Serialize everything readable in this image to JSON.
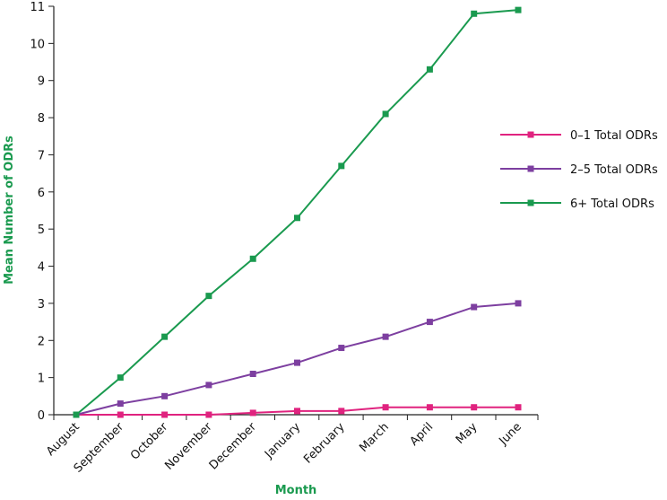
{
  "chart_data": {
    "type": "line",
    "xlabel": "Month",
    "ylabel": "Mean Number of ODRs",
    "axis_title_color": "#1a9a4f",
    "x": [
      "August",
      "September",
      "October",
      "November",
      "December",
      "January",
      "February",
      "March",
      "April",
      "May",
      "June"
    ],
    "ylim": [
      0,
      11
    ],
    "yticks": [
      0,
      1,
      2,
      3,
      4,
      5,
      6,
      7,
      8,
      9,
      10,
      11
    ],
    "grid": false,
    "legend_position": "right",
    "series": [
      {
        "name": "0–1 Total ODRs",
        "color": "#e0237f",
        "marker": "square",
        "values": [
          0,
          0,
          0,
          0,
          0.05,
          0.1,
          0.1,
          0.2,
          0.2,
          0.2,
          0.2
        ]
      },
      {
        "name": "2–5 Total ODRs",
        "color": "#7d3fa0",
        "marker": "square",
        "values": [
          0,
          0.3,
          0.5,
          0.8,
          1.1,
          1.4,
          1.8,
          2.1,
          2.5,
          2.9,
          3.0
        ]
      },
      {
        "name": "6+ Total ODRs",
        "color": "#1a9a4f",
        "marker": "square",
        "values": [
          0,
          1.0,
          2.1,
          3.2,
          4.2,
          5.3,
          6.7,
          8.1,
          9.3,
          10.8,
          10.9
        ]
      }
    ]
  }
}
